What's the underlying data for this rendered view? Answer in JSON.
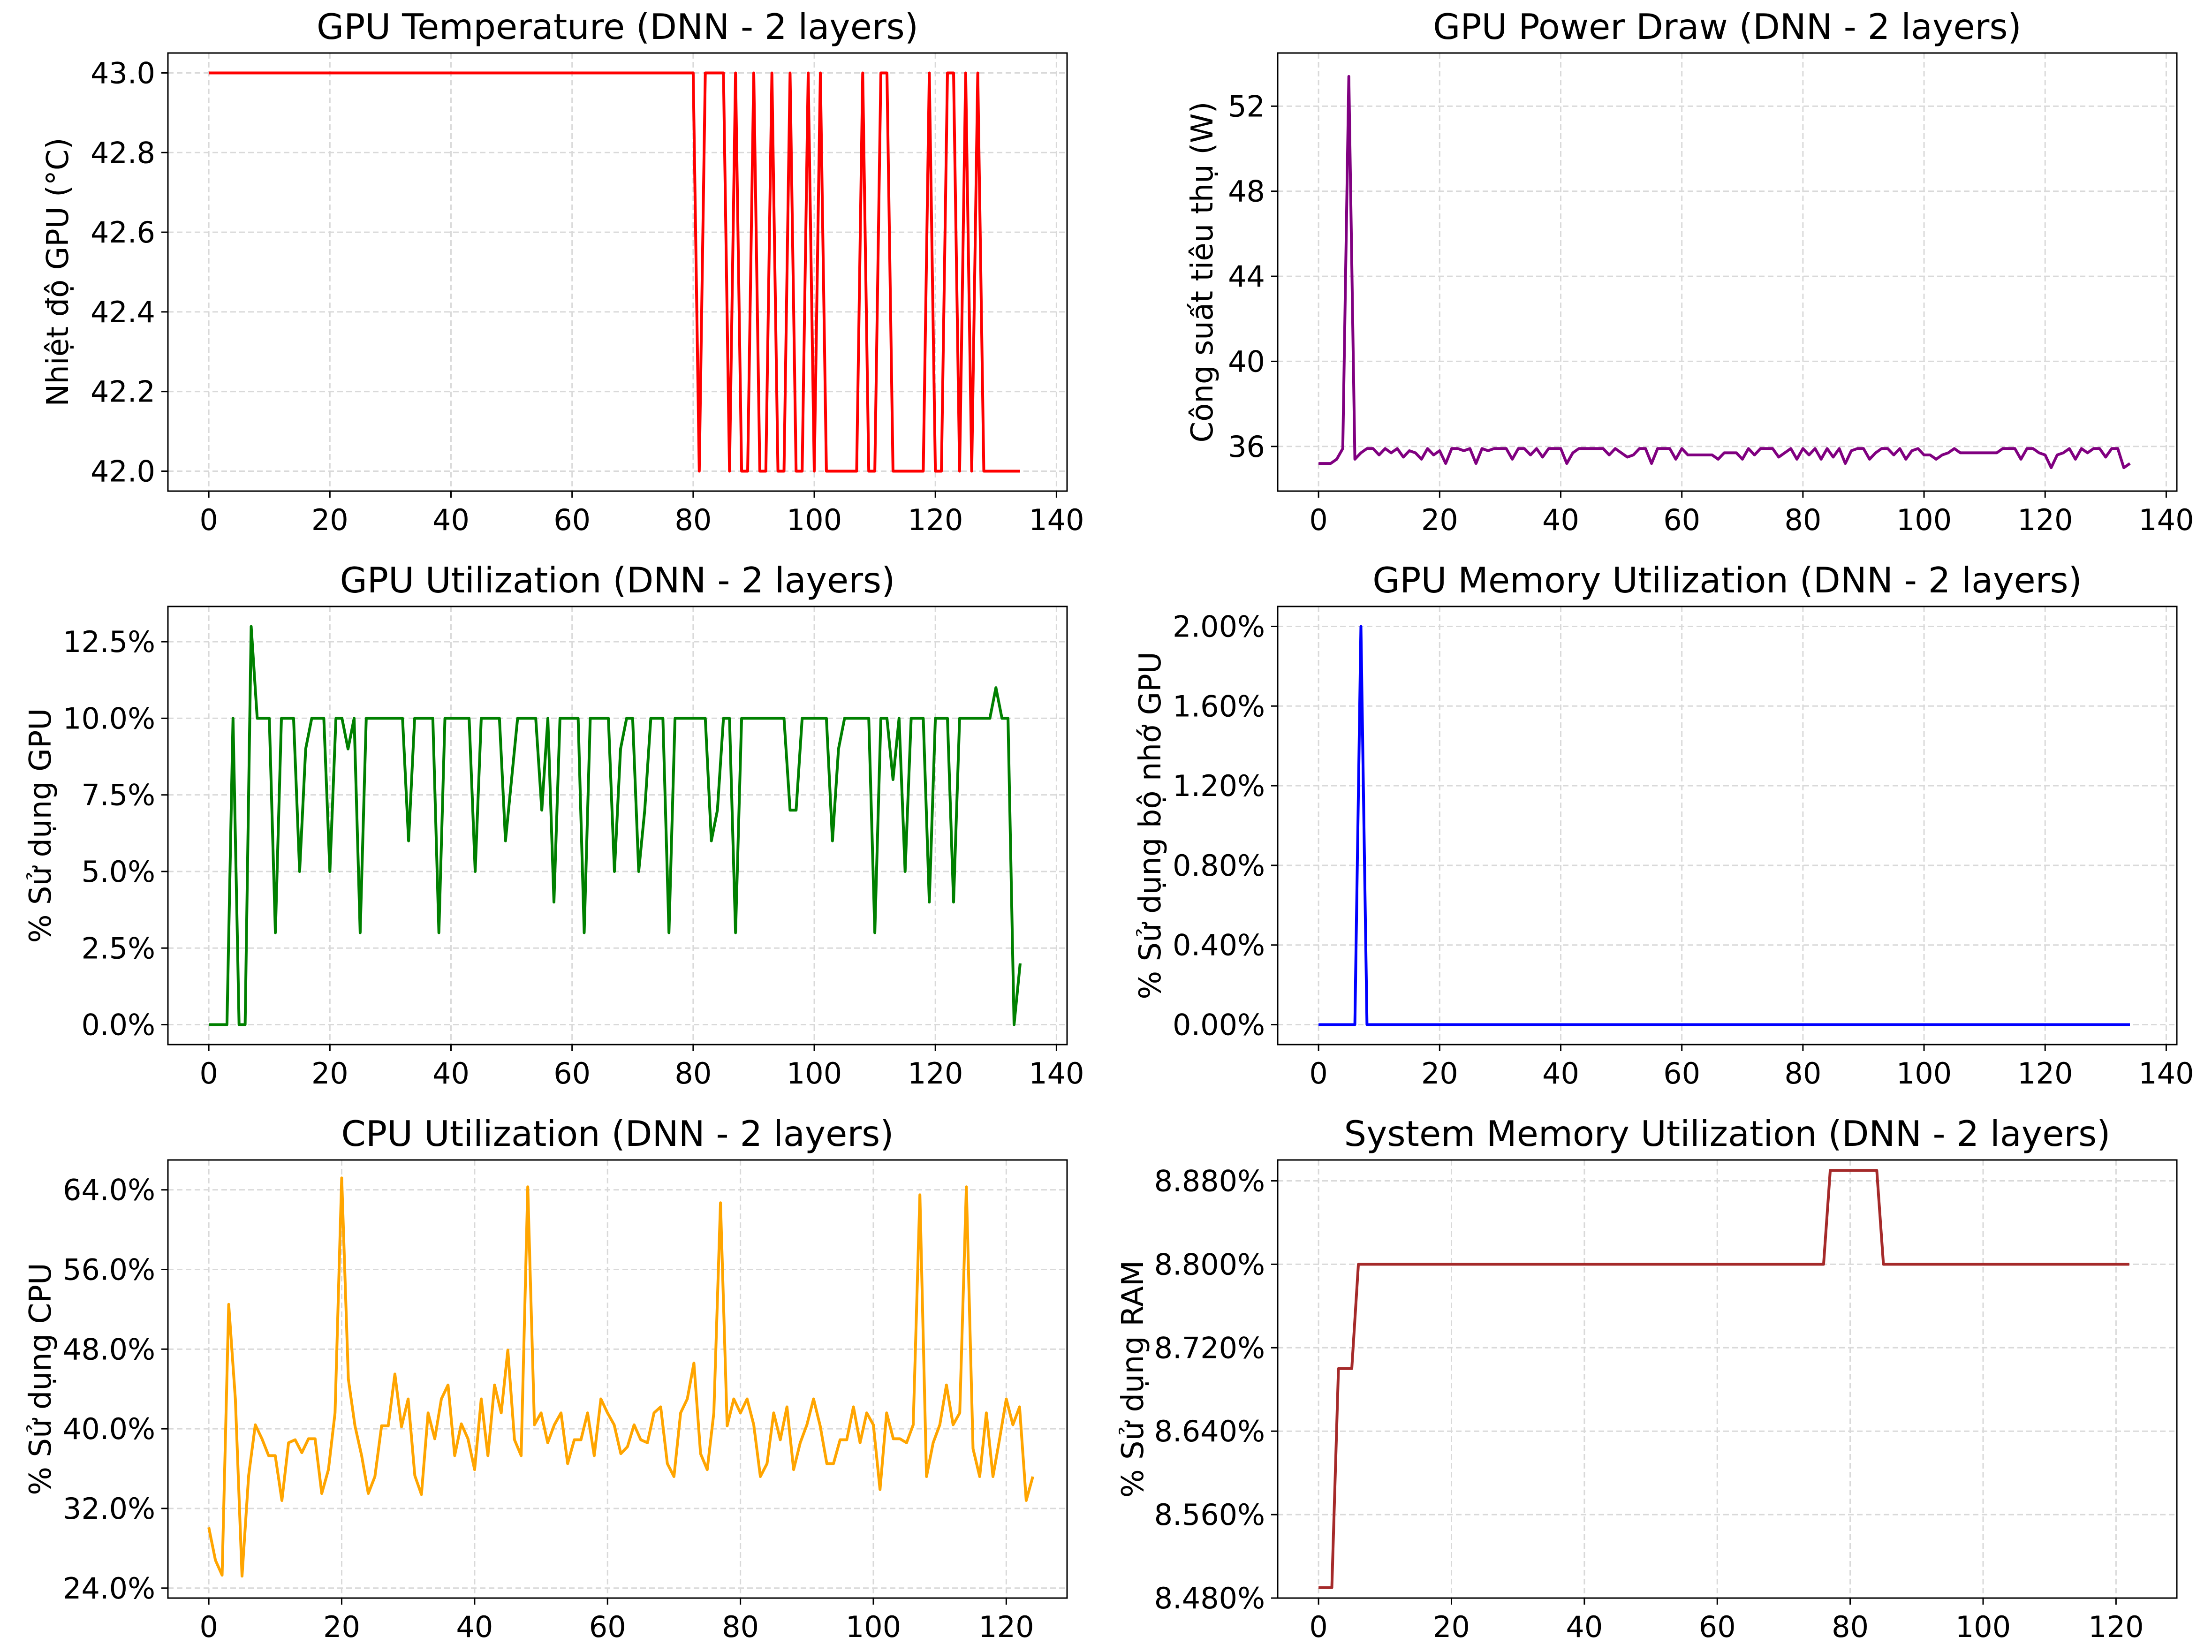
{
  "chart_data": [
    {
      "type": "line",
      "title": "GPU Temperature (DNN - 2 layers)",
      "xlabel": "",
      "ylabel": "Nhiệt độ GPU (°C)",
      "color": "#ff0000",
      "xlim": [
        -6.75,
        141.75
      ],
      "ylim": [
        41.95,
        43.05
      ],
      "xticks": [
        0,
        20,
        40,
        60,
        80,
        100,
        120,
        140
      ],
      "xtick_labels": [
        "0",
        "20",
        "40",
        "60",
        "80",
        "100",
        "120",
        "140"
      ],
      "yticks": [
        42.0,
        42.2,
        42.4,
        42.6,
        42.8,
        43.0
      ],
      "ytick_labels": [
        "42.0",
        "42.2",
        "42.4",
        "42.6",
        "42.8",
        "43.0"
      ],
      "grid": true,
      "x_start": 0,
      "values": [
        43,
        43,
        43,
        43,
        43,
        43,
        43,
        43,
        43,
        43,
        43,
        43,
        43,
        43,
        43,
        43,
        43,
        43,
        43,
        43,
        43,
        43,
        43,
        43,
        43,
        43,
        43,
        43,
        43,
        43,
        43,
        43,
        43,
        43,
        43,
        43,
        43,
        43,
        43,
        43,
        43,
        43,
        43,
        43,
        43,
        43,
        43,
        43,
        43,
        43,
        43,
        43,
        43,
        43,
        43,
        43,
        43,
        43,
        43,
        43,
        43,
        43,
        43,
        43,
        43,
        43,
        43,
        43,
        43,
        43,
        43,
        43,
        43,
        43,
        43,
        43,
        43,
        43,
        43,
        43,
        43,
        42,
        43,
        43,
        43,
        43,
        42,
        43,
        42,
        42,
        43,
        42,
        42,
        43,
        42,
        42,
        43,
        42,
        42,
        43,
        42,
        43,
        42,
        42,
        42,
        42,
        42,
        42,
        43,
        42,
        42,
        43,
        43,
        42,
        42,
        42,
        42,
        42,
        42,
        43,
        42,
        42,
        43,
        43,
        42,
        43,
        42,
        43,
        42,
        42,
        42,
        42,
        42,
        42,
        42
      ]
    },
    {
      "type": "line",
      "title": "GPU Power Draw (DNN - 2 layers)",
      "xlabel": "",
      "ylabel": "Công suất tiêu thụ (W)",
      "color": "#800080",
      "xlim": [
        -6.75,
        141.75
      ],
      "ylim": [
        33.9,
        54.5
      ],
      "xticks": [
        0,
        20,
        40,
        60,
        80,
        100,
        120,
        140
      ],
      "xtick_labels": [
        "0",
        "20",
        "40",
        "60",
        "80",
        "100",
        "120",
        "140"
      ],
      "yticks": [
        36,
        40,
        44,
        48,
        52
      ],
      "ytick_labels": [
        "36",
        "40",
        "44",
        "48",
        "52"
      ],
      "grid": true,
      "x_start": 0,
      "values": [
        35.2,
        35.2,
        35.2,
        35.4,
        35.9,
        53.4,
        35.4,
        35.7,
        35.9,
        35.9,
        35.6,
        35.9,
        35.7,
        35.9,
        35.5,
        35.8,
        35.7,
        35.4,
        35.9,
        35.6,
        35.8,
        35.2,
        35.9,
        35.9,
        35.8,
        35.9,
        35.2,
        35.9,
        35.8,
        35.9,
        35.9,
        35.9,
        35.4,
        35.9,
        35.9,
        35.6,
        35.9,
        35.5,
        35.9,
        35.9,
        35.9,
        35.2,
        35.7,
        35.9,
        35.9,
        35.9,
        35.9,
        35.9,
        35.6,
        35.9,
        35.7,
        35.5,
        35.6,
        35.9,
        35.9,
        35.2,
        35.9,
        35.9,
        35.9,
        35.4,
        35.9,
        35.6,
        35.6,
        35.6,
        35.6,
        35.6,
        35.4,
        35.7,
        35.7,
        35.7,
        35.4,
        35.9,
        35.6,
        35.9,
        35.9,
        35.9,
        35.5,
        35.7,
        35.9,
        35.4,
        35.9,
        35.6,
        35.9,
        35.4,
        35.9,
        35.5,
        35.9,
        35.2,
        35.8,
        35.9,
        35.9,
        35.4,
        35.7,
        35.9,
        35.9,
        35.6,
        35.9,
        35.4,
        35.8,
        35.9,
        35.6,
        35.6,
        35.4,
        35.6,
        35.7,
        35.9,
        35.7,
        35.7,
        35.7,
        35.7,
        35.7,
        35.7,
        35.7,
        35.9,
        35.9,
        35.9,
        35.4,
        35.9,
        35.9,
        35.7,
        35.6,
        35.0,
        35.6,
        35.7,
        35.9,
        35.4,
        35.9,
        35.7,
        35.9,
        35.9,
        35.5,
        35.9,
        35.9,
        35.0,
        35.2
      ]
    },
    {
      "type": "line",
      "title": "GPU Utilization (DNN - 2 layers)",
      "xlabel": "",
      "ylabel": "% Sử dụng GPU",
      "color": "#008000",
      "xlim": [
        -6.75,
        141.75
      ],
      "ylim": [
        -0.65,
        13.65
      ],
      "xticks": [
        0,
        20,
        40,
        60,
        80,
        100,
        120,
        140
      ],
      "xtick_labels": [
        "0",
        "20",
        "40",
        "60",
        "80",
        "100",
        "120",
        "140"
      ],
      "yticks": [
        0,
        2.5,
        5,
        7.5,
        10,
        12.5
      ],
      "ytick_labels": [
        "0.0%",
        "2.5%",
        "5.0%",
        "7.5%",
        "10.0%",
        "12.5%"
      ],
      "grid": true,
      "x_start": 0,
      "values": [
        0,
        0,
        0,
        0,
        10,
        0,
        0,
        13,
        10,
        10,
        10,
        3,
        10,
        10,
        10,
        5,
        9,
        10,
        10,
        10,
        5,
        10,
        10,
        9,
        10,
        3,
        10,
        10,
        10,
        10,
        10,
        10,
        10,
        6,
        10,
        10,
        10,
        10,
        3,
        10,
        10,
        10,
        10,
        10,
        5,
        10,
        10,
        10,
        10,
        6,
        8,
        10,
        10,
        10,
        10,
        7,
        10,
        4,
        10,
        10,
        10,
        10,
        3,
        10,
        10,
        10,
        10,
        5,
        9,
        10,
        10,
        5,
        7,
        10,
        10,
        10,
        3,
        10,
        10,
        10,
        10,
        10,
        10,
        6,
        7,
        10,
        10,
        3,
        10,
        10,
        10,
        10,
        10,
        10,
        10,
        10,
        7,
        7,
        10,
        10,
        10,
        10,
        10,
        6,
        9,
        10,
        10,
        10,
        10,
        10,
        3,
        10,
        10,
        8,
        10,
        5,
        10,
        10,
        10,
        4,
        10,
        10,
        10,
        4,
        10,
        10,
        10,
        10,
        10,
        10,
        11,
        10,
        10,
        0,
        2
      ]
    },
    {
      "type": "line",
      "title": "GPU Memory Utilization (DNN - 2 layers)",
      "xlabel": "",
      "ylabel": "% Sử dụng bộ nhớ GPU",
      "color": "#0000ff",
      "xlim": [
        -6.75,
        141.75
      ],
      "ylim": [
        -0.1,
        2.1
      ],
      "xticks": [
        0,
        20,
        40,
        60,
        80,
        100,
        120,
        140
      ],
      "xtick_labels": [
        "0",
        "20",
        "40",
        "60",
        "80",
        "100",
        "120",
        "140"
      ],
      "yticks": [
        0,
        0.4,
        0.8,
        1.2,
        1.6,
        2.0
      ],
      "ytick_labels": [
        "0.00%",
        "0.40%",
        "0.80%",
        "1.20%",
        "1.60%",
        "2.00%"
      ],
      "grid": true,
      "x_start": 0,
      "values": [
        0,
        0,
        0,
        0,
        0,
        0,
        0,
        2,
        0,
        0,
        0,
        0,
        0,
        0,
        0,
        0,
        0,
        0,
        0,
        0,
        0,
        0,
        0,
        0,
        0,
        0,
        0,
        0,
        0,
        0,
        0,
        0,
        0,
        0,
        0,
        0,
        0,
        0,
        0,
        0,
        0,
        0,
        0,
        0,
        0,
        0,
        0,
        0,
        0,
        0,
        0,
        0,
        0,
        0,
        0,
        0,
        0,
        0,
        0,
        0,
        0,
        0,
        0,
        0,
        0,
        0,
        0,
        0,
        0,
        0,
        0,
        0,
        0,
        0,
        0,
        0,
        0,
        0,
        0,
        0,
        0,
        0,
        0,
        0,
        0,
        0,
        0,
        0,
        0,
        0,
        0,
        0,
        0,
        0,
        0,
        0,
        0,
        0,
        0,
        0,
        0,
        0,
        0,
        0,
        0,
        0,
        0,
        0,
        0,
        0,
        0,
        0,
        0,
        0,
        0,
        0,
        0,
        0,
        0,
        0,
        0,
        0,
        0,
        0,
        0,
        0,
        0,
        0,
        0,
        0,
        0,
        0,
        0,
        0,
        0
      ]
    },
    {
      "type": "line",
      "title": "CPU Utilization (DNN - 2 layers)",
      "xlabel": "",
      "ylabel": "% Sử dụng CPU",
      "color": "#ffa500",
      "xlim": [
        -6.15,
        129.15
      ],
      "ylim": [
        23.0,
        67.0
      ],
      "xticks": [
        0,
        20,
        40,
        60,
        80,
        100,
        120
      ],
      "xtick_labels": [
        "0",
        "20",
        "40",
        "60",
        "80",
        "100",
        "120"
      ],
      "yticks": [
        24,
        32,
        40,
        48,
        56,
        64
      ],
      "ytick_labels": [
        "24.0%",
        "32.0%",
        "40.0%",
        "48.0%",
        "56.0%",
        "64.0%"
      ],
      "grid": true,
      "x_start": 0,
      "values": [
        30.1,
        26.8,
        25.3,
        52.5,
        43.0,
        25.2,
        35.3,
        40.4,
        39.0,
        37.3,
        37.3,
        32.8,
        38.6,
        38.9,
        37.6,
        39.0,
        39.0,
        33.5,
        35.9,
        41.6,
        65.2,
        45.0,
        40.3,
        37.3,
        33.5,
        35.2,
        40.3,
        40.3,
        45.5,
        40.2,
        43.0,
        35.3,
        33.4,
        41.6,
        39.0,
        43.0,
        44.4,
        37.3,
        40.5,
        39.0,
        35.9,
        43.0,
        37.3,
        44.4,
        41.6,
        47.9,
        38.9,
        37.3,
        64.3,
        40.4,
        41.6,
        38.6,
        40.4,
        41.6,
        36.5,
        38.9,
        38.9,
        41.6,
        37.3,
        43.0,
        41.6,
        40.4,
        37.5,
        38.2,
        40.4,
        38.9,
        38.6,
        41.6,
        42.2,
        36.5,
        35.2,
        41.6,
        43.0,
        46.6,
        37.5,
        35.9,
        41.6,
        62.7,
        40.3,
        43.0,
        41.6,
        43.0,
        40.4,
        35.2,
        36.5,
        41.6,
        38.9,
        42.2,
        35.9,
        38.6,
        40.4,
        43.0,
        40.3,
        36.5,
        36.5,
        38.9,
        38.9,
        42.2,
        38.6,
        41.6,
        40.4,
        33.9,
        41.6,
        39.0,
        39.0,
        38.6,
        40.4,
        63.5,
        35.2,
        38.6,
        40.4,
        44.4,
        40.4,
        41.6,
        64.3,
        38.0,
        35.2,
        41.6,
        35.2,
        39.0,
        43.0,
        40.4,
        42.2,
        32.8,
        35.2
      ]
    },
    {
      "type": "line",
      "title": "System Memory Utilization (DNN - 2 layers)",
      "xlabel": "",
      "ylabel": "% Sử dụng RAM",
      "color": "#a52a2a",
      "xlim": [
        -6.15,
        129.15
      ],
      "ylim": [
        8.48,
        8.9
      ],
      "xticks": [
        0,
        20,
        40,
        60,
        80,
        100,
        120
      ],
      "xtick_labels": [
        "0",
        "20",
        "40",
        "60",
        "80",
        "100",
        "120"
      ],
      "yticks": [
        8.48,
        8.56,
        8.64,
        8.72,
        8.8,
        8.88
      ],
      "ytick_labels": [
        "8.480%",
        "8.560%",
        "8.640%",
        "8.720%",
        "8.800%",
        "8.880%"
      ],
      "grid": true,
      "x_start": 0,
      "values": [
        8.49,
        8.49,
        8.49,
        8.7,
        8.7,
        8.7,
        8.8,
        8.8,
        8.8,
        8.8,
        8.8,
        8.8,
        8.8,
        8.8,
        8.8,
        8.8,
        8.8,
        8.8,
        8.8,
        8.8,
        8.8,
        8.8,
        8.8,
        8.8,
        8.8,
        8.8,
        8.8,
        8.8,
        8.8,
        8.8,
        8.8,
        8.8,
        8.8,
        8.8,
        8.8,
        8.8,
        8.8,
        8.8,
        8.8,
        8.8,
        8.8,
        8.8,
        8.8,
        8.8,
        8.8,
        8.8,
        8.8,
        8.8,
        8.8,
        8.8,
        8.8,
        8.8,
        8.8,
        8.8,
        8.8,
        8.8,
        8.8,
        8.8,
        8.8,
        8.8,
        8.8,
        8.8,
        8.8,
        8.8,
        8.8,
        8.8,
        8.8,
        8.8,
        8.8,
        8.8,
        8.8,
        8.8,
        8.8,
        8.8,
        8.8,
        8.8,
        8.8,
        8.89,
        8.89,
        8.89,
        8.89,
        8.89,
        8.89,
        8.89,
        8.89,
        8.8,
        8.8,
        8.8,
        8.8,
        8.8,
        8.8,
        8.8,
        8.8,
        8.8,
        8.8,
        8.8,
        8.8,
        8.8,
        8.8,
        8.8,
        8.8,
        8.8,
        8.8,
        8.8,
        8.8,
        8.8,
        8.8,
        8.8,
        8.8,
        8.8,
        8.8,
        8.8,
        8.8,
        8.8,
        8.8,
        8.8,
        8.8,
        8.8,
        8.8,
        8.8,
        8.8,
        8.8,
        8.8
      ]
    }
  ]
}
